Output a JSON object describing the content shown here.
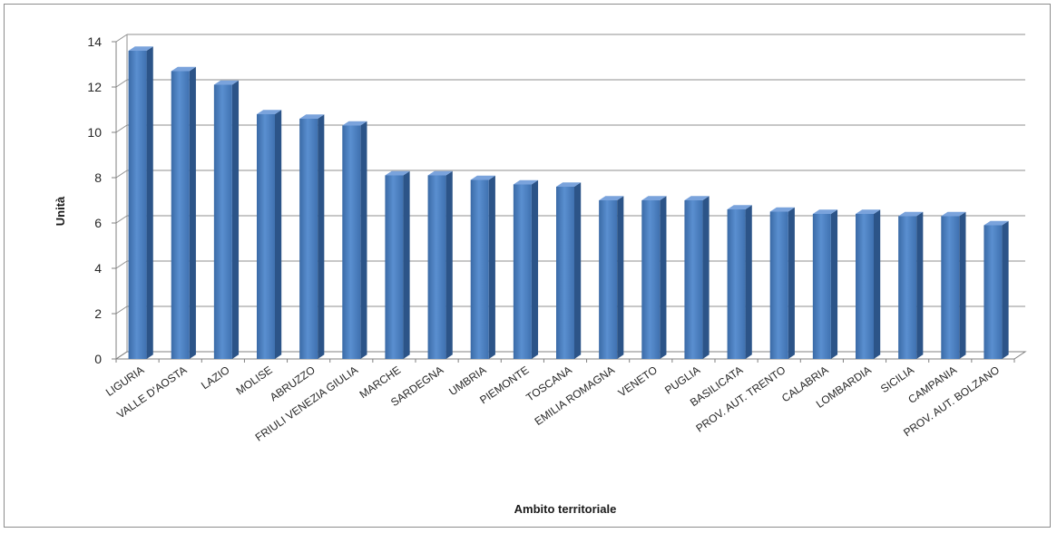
{
  "chart_data": {
    "type": "bar",
    "title": "",
    "xlabel": "Ambito territoriale",
    "ylabel": "Unità",
    "ylim": [
      0,
      14
    ],
    "yticks": [
      0,
      2,
      4,
      6,
      8,
      10,
      12,
      14
    ],
    "grid": true,
    "legend": "none",
    "bar_color": "#4a7ebf",
    "categories": [
      "LIGURIA",
      "VALLE D'AOSTA",
      "LAZIO",
      "MOLISE",
      "ABRUZZO",
      "FRIULI VENEZIA GIULIA",
      "MARCHE",
      "SARDEGNA",
      "UMBRIA",
      "PIEMONTE",
      "TOSCANA",
      "EMILIA ROMAGNA",
      "VENETO",
      "PUGLIA",
      "BASILICATA",
      "PROV. AUT. TRENTO",
      "CALABRIA",
      "LOMBARDIA",
      "SICILIA",
      "CAMPANIA",
      "PROV. AUT. BOLZANO"
    ],
    "values": [
      13.6,
      12.7,
      12.1,
      10.8,
      10.6,
      10.3,
      8.1,
      8.1,
      7.9,
      7.7,
      7.6,
      7.0,
      7.0,
      7.0,
      6.6,
      6.5,
      6.4,
      6.4,
      6.3,
      6.3,
      5.9
    ]
  }
}
